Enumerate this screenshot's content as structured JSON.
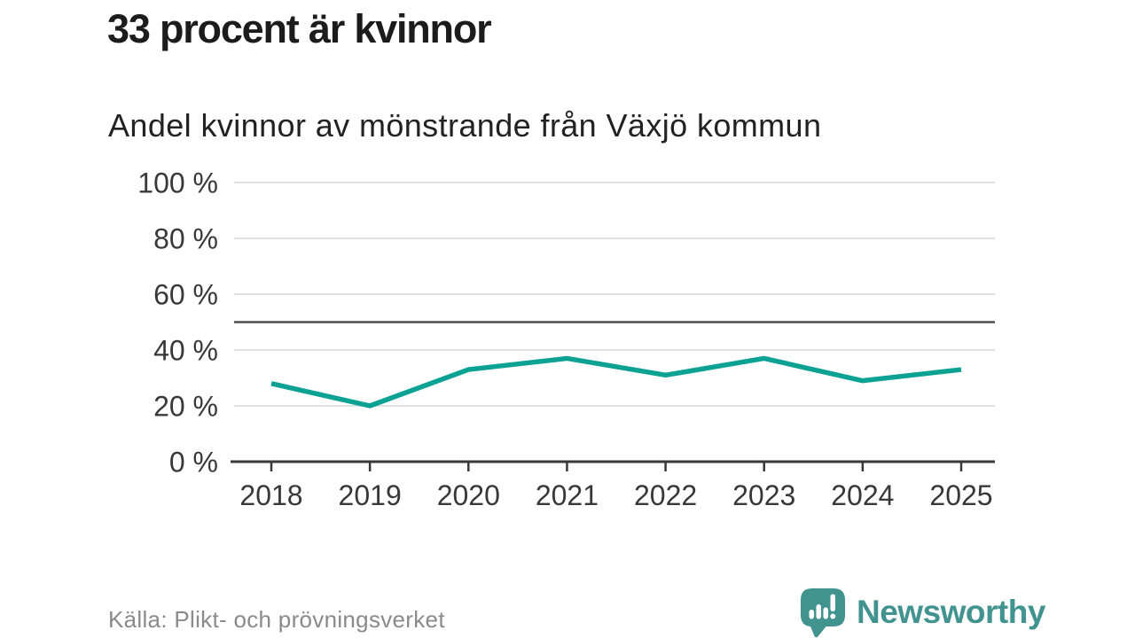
{
  "chart_data": {
    "type": "line",
    "title": "33 procent är kvinnor",
    "subtitle": "Andel kvinnor av mönstrande från Växjö kommun",
    "x": [
      2018,
      2019,
      2020,
      2021,
      2022,
      2023,
      2024,
      2025
    ],
    "series": [
      {
        "name": "Andel kvinnor av mönstrande",
        "values": [
          28,
          20,
          33,
          37,
          31,
          37,
          29,
          33
        ],
        "color": "#0ba294"
      }
    ],
    "unit": "%",
    "ylim": [
      0,
      100
    ],
    "yticks": [
      0,
      20,
      40,
      60,
      80,
      100
    ],
    "ytick_labels": [
      "0 %",
      "20 %",
      "40 %",
      "60 %",
      "80 %",
      "100 %"
    ],
    "reference_line": {
      "value": 50,
      "color": "#4d4d4d"
    },
    "grid": true,
    "legend": "none"
  },
  "footer": {
    "source": "Källa: Plikt- och prövningsverket",
    "brand": "Newsworthy",
    "brand_icon": "speech-bubble-bar-chart-icon"
  },
  "colors": {
    "line": "#0ba294",
    "brand": "#41938f",
    "grid": "#dcdcdc",
    "axis": "#383838",
    "reference": "#4d4d4d",
    "title_text": "#1c1c1c",
    "muted_text": "#8a8a8a",
    "background": "#ffffff"
  }
}
